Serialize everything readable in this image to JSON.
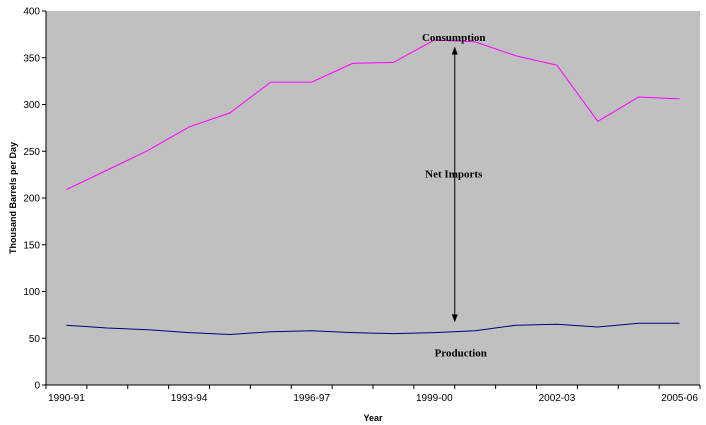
{
  "chart_data": {
    "type": "line",
    "title": "",
    "xlabel": "Year",
    "ylabel": "Thousand Barrels per Day",
    "ylim": [
      0,
      400
    ],
    "yticks": [
      0,
      50,
      100,
      150,
      200,
      250,
      300,
      350,
      400
    ],
    "x": [
      "1990-91",
      "1991-92",
      "1992-93",
      "1993-94",
      "1994-95",
      "1995-96",
      "1996-97",
      "1997-98",
      "1998-99",
      "1999-00",
      "2000-01",
      "2001-02",
      "2002-03",
      "2003-04",
      "2004-05",
      "2005-06"
    ],
    "xtick_labels": [
      "1990-91",
      "1993-94",
      "1996-97",
      "1999-00",
      "2002-03",
      "2005-06"
    ],
    "grid": false,
    "background": "#c0c0c0",
    "series": [
      {
        "name": "Consumption",
        "color": "#ff00ff",
        "values": [
          209,
          230,
          251,
          276,
          291,
          324,
          324,
          344,
          345,
          369,
          367,
          352,
          342,
          282,
          308,
          306
        ]
      },
      {
        "name": "Production",
        "color": "#000080",
        "values": [
          64,
          61,
          59,
          56,
          54,
          57,
          58,
          56,
          55,
          56,
          58,
          64,
          65,
          62,
          66,
          66
        ]
      }
    ],
    "annotations": {
      "consumption_label": "Consumption",
      "net_imports_label": "Net Imports",
      "production_label": "Production"
    }
  }
}
